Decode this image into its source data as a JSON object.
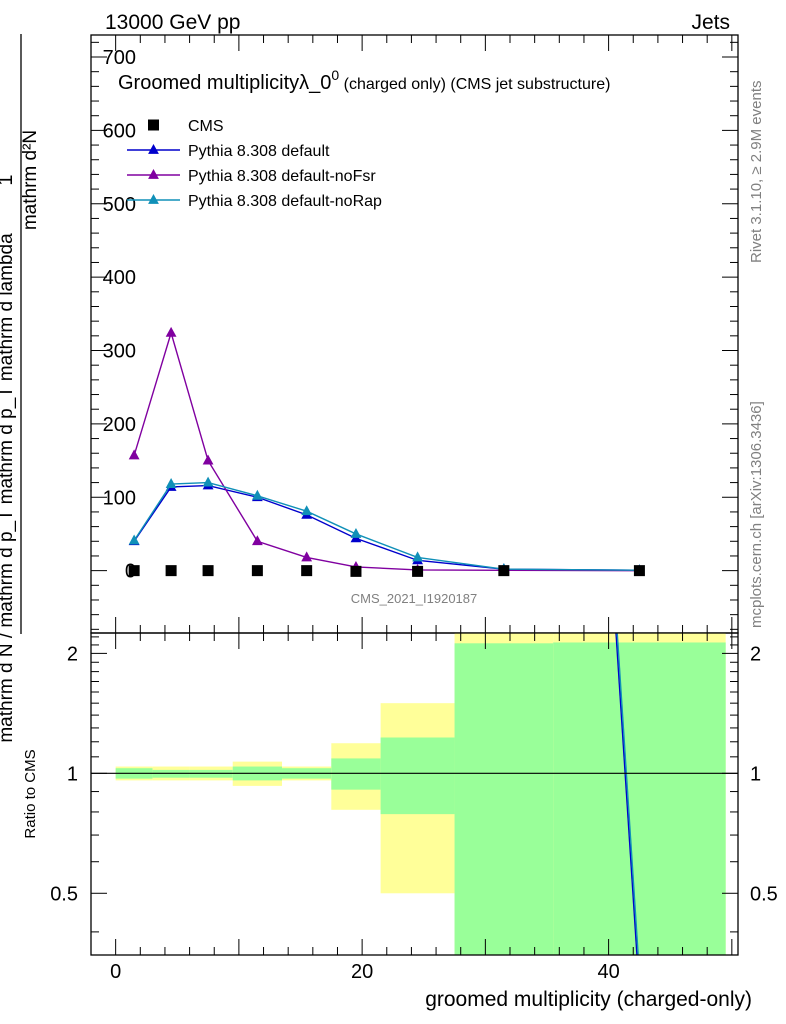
{
  "header": {
    "energy_label": "13000 GeV pp",
    "process_label": "Jets"
  },
  "side_labels": {
    "rivet": "Rivet 3.1.10, ≥ 2.9M events",
    "site": "mcplots.cern.ch [arXiv:1306.3436]"
  },
  "watermark": "CMS_2021_I1920187",
  "chart_data": [
    {
      "type": "scatter",
      "title": "Groomed multiplicityλ_0",
      "title_superscript": "0",
      "title_suffix": " (charged only) (CMS jet substructure)",
      "ylabel_numerator": "mathrm d²N",
      "ylabel_denominator": "mathrm d N / mathrm d p_T mathrm d p_T mathrm d lambda",
      "ylabel_one": "1",
      "ylim": [
        -85,
        730
      ],
      "xlim": [
        -2,
        50.5
      ],
      "y_ticks": [
        0,
        100,
        200,
        300,
        400,
        500,
        600,
        700
      ],
      "y_tick_labels": [
        "0",
        "100",
        "200",
        "300",
        "400",
        "500",
        "600",
        "700"
      ],
      "legend_position": "top-left",
      "series": [
        {
          "name": "CMS",
          "color": "#000000",
          "marker": "square",
          "x": [
            1.5,
            4.5,
            7.5,
            11.5,
            15.5,
            19.5,
            24.5,
            31.5,
            42.5
          ],
          "y": [
            0,
            0,
            0,
            0,
            0,
            -1,
            -1,
            0,
            0
          ]
        },
        {
          "name": "Pythia 8.308 default",
          "color": "#0000cc",
          "marker": "triangle",
          "x": [
            1.5,
            4.5,
            7.5,
            11.5,
            15.5,
            19.5,
            24.5,
            31.5,
            42.5
          ],
          "y": [
            40,
            114,
            116,
            100,
            76,
            44,
            14,
            2,
            0.5
          ]
        },
        {
          "name": "Pythia 8.308 default-noFsr",
          "color": "#8000a0",
          "marker": "triangle",
          "x": [
            1.5,
            4.5,
            7.5,
            11.5,
            15.5,
            19.5,
            24.5,
            31.5,
            42.5
          ],
          "y": [
            157,
            324,
            150,
            40,
            18,
            5,
            1,
            0.5,
            0
          ]
        },
        {
          "name": "Pythia 8.308 default-noRap",
          "color": "#1090b8",
          "marker": "triangle",
          "x": [
            1.5,
            4.5,
            7.5,
            11.5,
            15.5,
            19.5,
            24.5,
            31.5,
            42.5
          ],
          "y": [
            41,
            118,
            120,
            102,
            81,
            50,
            18,
            2,
            0.5
          ]
        }
      ]
    },
    {
      "type": "area",
      "ylabel": "Ratio to CMS",
      "xlabel": "groomed multiplicity (charged-only)",
      "xlim": [
        -2,
        50.5
      ],
      "ylim": [
        0.35,
        2.25
      ],
      "x_ticks": [
        0,
        20,
        40
      ],
      "x_tick_labels": [
        "0",
        "20",
        "40"
      ],
      "y_ticks": [
        0.5,
        1,
        2
      ],
      "y_tick_labels": [
        "0.5",
        "1",
        "2"
      ],
      "reference_line": 1,
      "band_colors": {
        "outer": "#ffff99",
        "inner": "#99ff99"
      },
      "bins": [
        {
          "lo": 0,
          "hi": 3,
          "outer": [
            0.96,
            1.04
          ],
          "inner": [
            0.97,
            1.03
          ]
        },
        {
          "lo": 3,
          "hi": 6,
          "outer": [
            0.96,
            1.04
          ],
          "inner": [
            0.975,
            1.02
          ]
        },
        {
          "lo": 6,
          "hi": 9.5,
          "outer": [
            0.96,
            1.04
          ],
          "inner": [
            0.975,
            1.02
          ]
        },
        {
          "lo": 9.5,
          "hi": 13.5,
          "outer": [
            0.93,
            1.07
          ],
          "inner": [
            0.96,
            1.04
          ]
        },
        {
          "lo": 13.5,
          "hi": 17.5,
          "outer": [
            0.96,
            1.04
          ],
          "inner": [
            0.97,
            1.03
          ]
        },
        {
          "lo": 17.5,
          "hi": 21.5,
          "outer": [
            0.81,
            1.19
          ],
          "inner": [
            0.91,
            1.09
          ]
        },
        {
          "lo": 21.5,
          "hi": 27.5,
          "outer": [
            0.5,
            1.5
          ],
          "inner": [
            0.79,
            1.23
          ]
        },
        {
          "lo": 27.5,
          "hi": 35.5,
          "outer": [
            0.35,
            2.25
          ],
          "inner": [
            0.35,
            2.12
          ]
        },
        {
          "lo": 35.5,
          "hi": 49.5,
          "outer": [
            0.35,
            2.25
          ],
          "inner": [
            0.35,
            2.13
          ]
        }
      ],
      "series": [
        {
          "name": "Pythia 8.308 default",
          "color": "#0000cc",
          "x": [
            40.6,
            42.3
          ],
          "y": [
            2.25,
            0.35
          ]
        },
        {
          "name": "Pythia 8.308 default-noRap",
          "color": "#1090b8",
          "x": [
            40.7,
            42.4
          ],
          "y": [
            2.25,
            0.35
          ]
        }
      ]
    }
  ]
}
